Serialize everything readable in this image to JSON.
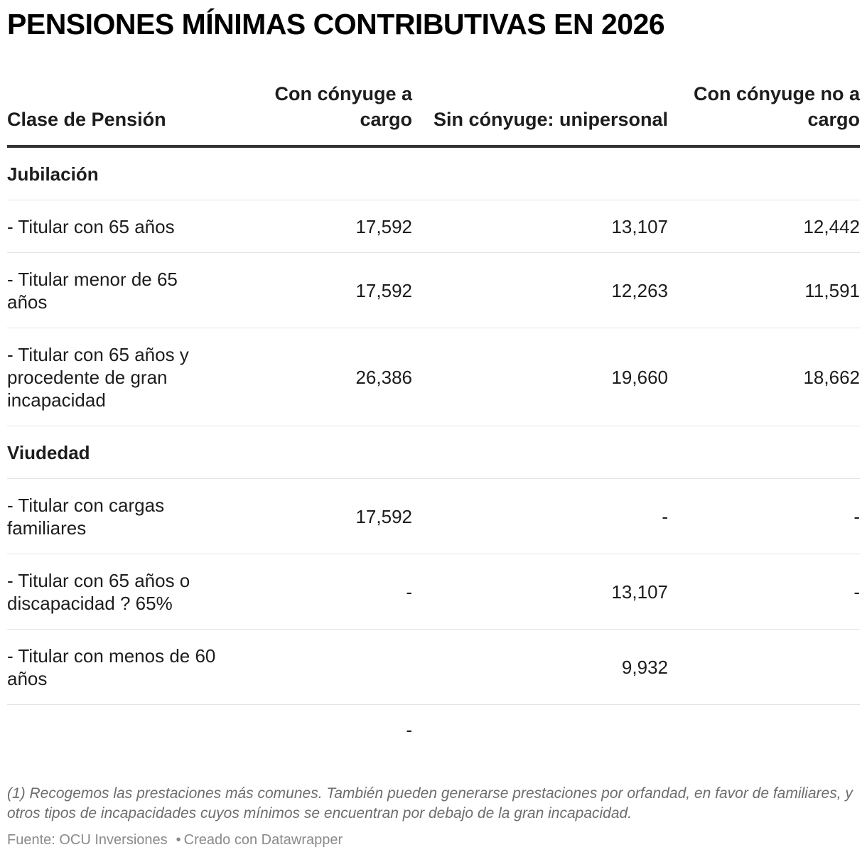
{
  "title": "PENSIONES MÍNIMAS CONTRIBUTIVAS EN 2026",
  "chart_data": {
    "type": "table",
    "title": "PENSIONES MÍNIMAS CONTRIBUTIVAS EN 2026",
    "columns": [
      "Clase de Pensión",
      "Con cónyuge a cargo",
      "Sin cónyuge: unipersonal",
      "Con cónyuge no a cargo"
    ],
    "rows": [
      {
        "cells": [
          "Jubilación",
          "",
          "",
          ""
        ],
        "section": true
      },
      {
        "cells": [
          "- Titular con 65 años",
          "17,592",
          "13,107",
          "12,442"
        ],
        "section": false
      },
      {
        "cells": [
          "- Titular menor de 65 años",
          "17,592",
          "12,263",
          "11,591"
        ],
        "section": false
      },
      {
        "cells": [
          "- Titular con 65 años y procedente de gran incapacidad",
          "26,386",
          "19,660",
          "18,662"
        ],
        "section": false
      },
      {
        "cells": [
          "Viudedad",
          "",
          "",
          ""
        ],
        "section": true
      },
      {
        "cells": [
          "- Titular con cargas familiares",
          "17,592",
          "-",
          "-"
        ],
        "section": false
      },
      {
        "cells": [
          "- Titular con 65 años o discapacidad ? 65%",
          "-",
          "13,107",
          "-"
        ],
        "section": false
      },
      {
        "cells": [
          "- Titular con menos de 60 años",
          "",
          "9,932",
          ""
        ],
        "section": false
      },
      {
        "cells": [
          "",
          "-",
          "",
          ""
        ],
        "section": false
      }
    ]
  },
  "notes": "(1) Recogemos las prestaciones más comunes. También pueden generarse prestaciones por orfandad, en favor de familiares, y otros tipos de incapacidades cuyos mínimos se encuentran por debajo de la gran incapacidad.",
  "footer": {
    "source": "Fuente: OCU Inversiones",
    "credit": "Creado con Datawrapper",
    "separator": "•"
  }
}
